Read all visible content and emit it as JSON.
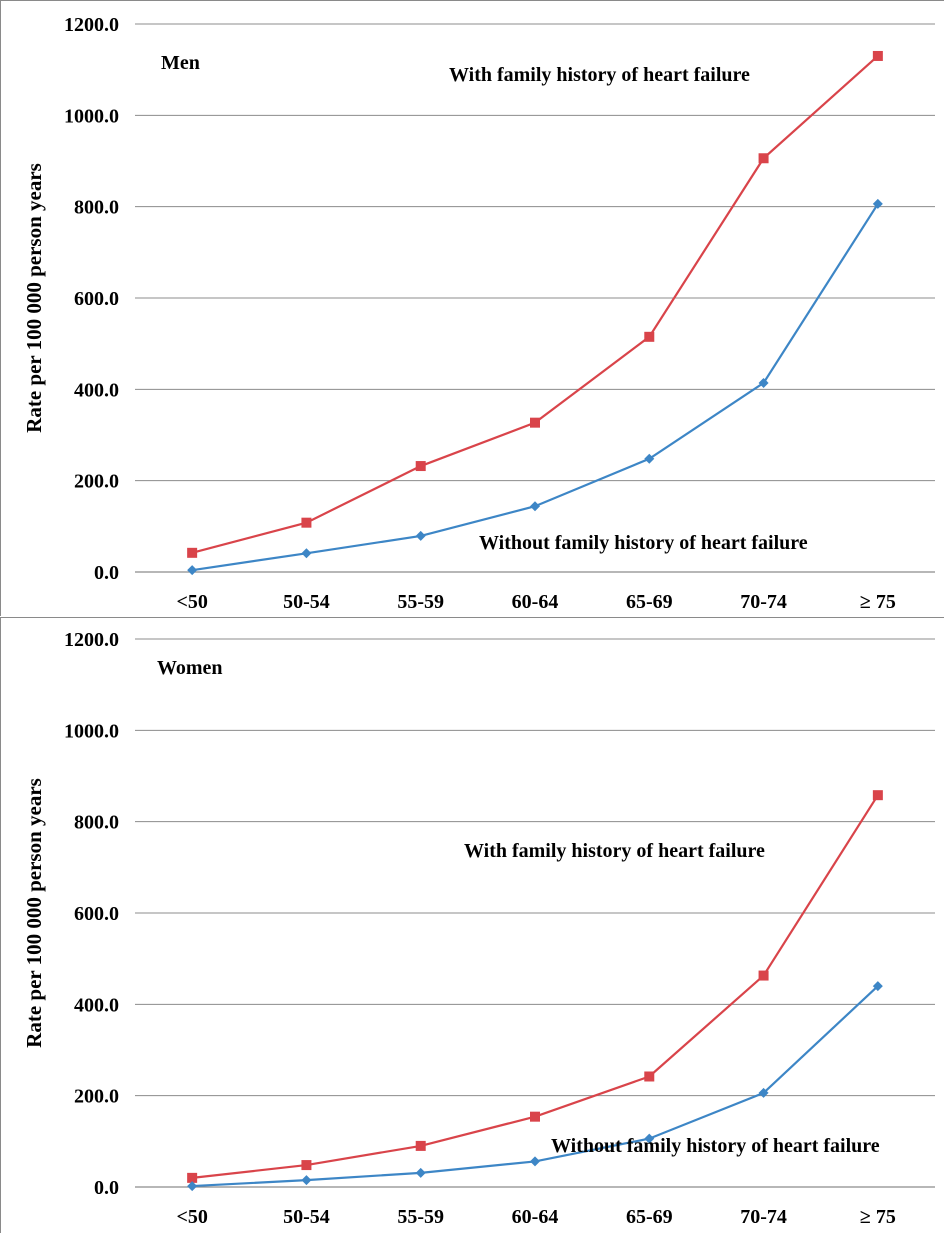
{
  "chart_data": [
    {
      "type": "line",
      "title": "Men",
      "ylabel": "Rate per 100 000 person years",
      "xlabel": "",
      "categories": [
        "<50",
        "50-54",
        "55-59",
        "60-64",
        "65-69",
        "70-74",
        "≥ 75"
      ],
      "yticks": [
        "0.0",
        "200.0",
        "400.0",
        "600.0",
        "800.0",
        "1000.0",
        "1200.0"
      ],
      "ylim": [
        0,
        1200
      ],
      "grid": true,
      "series": [
        {
          "name": "With family history of heart failure",
          "color": "#d9444a",
          "marker": "square",
          "values": [
            42,
            108,
            232,
            327,
            515,
            906,
            1130
          ]
        },
        {
          "name": "Without family history of heart failure",
          "color": "#3d86c6",
          "marker": "diamond",
          "values": [
            4,
            41,
            79,
            144,
            248,
            414,
            806
          ]
        }
      ]
    },
    {
      "type": "line",
      "title": "Women",
      "ylabel": "Rate per 100 000 person years",
      "xlabel": "",
      "categories": [
        "<50",
        "50-54",
        "55-59",
        "60-64",
        "65-69",
        "70-74",
        "≥ 75"
      ],
      "yticks": [
        "0.0",
        "200.0",
        "400.0",
        "600.0",
        "800.0",
        "1000.0",
        "1200.0"
      ],
      "ylim": [
        0,
        1200
      ],
      "grid": true,
      "series": [
        {
          "name": "With family history of heart failure",
          "color": "#d9444a",
          "marker": "square",
          "values": [
            20,
            48,
            90,
            154,
            242,
            463,
            858
          ]
        },
        {
          "name": "Without family history of heart failure",
          "color": "#3d86c6",
          "marker": "diamond",
          "values": [
            2,
            15,
            31,
            56,
            106,
            206,
            440
          ]
        }
      ]
    }
  ]
}
